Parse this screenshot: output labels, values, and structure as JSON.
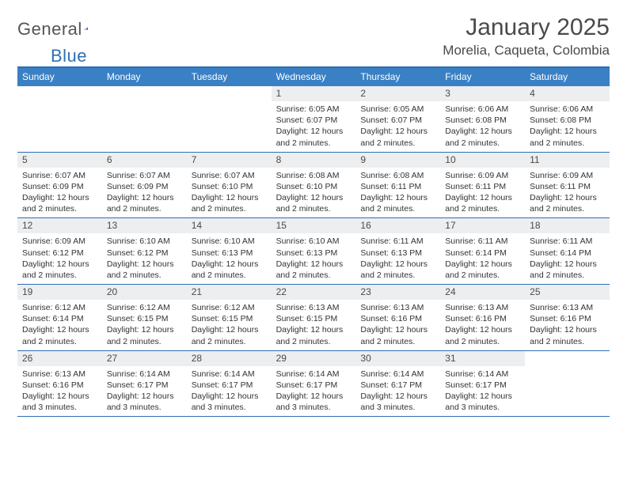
{
  "logo": {
    "general": "General",
    "blue": "Blue"
  },
  "header": {
    "month_title": "January 2025",
    "location": "Morelia, Caqueta, Colombia"
  },
  "colors": {
    "header_bar": "#3a80c4",
    "rule": "#2f6fb3",
    "daynum_bg": "#eceef0",
    "page_bg": "#ffffff",
    "text": "#333333",
    "title_text": "#4a4a4a"
  },
  "calendar": {
    "dow": [
      "Sunday",
      "Monday",
      "Tuesday",
      "Wednesday",
      "Thursday",
      "Friday",
      "Saturday"
    ],
    "fonts": {
      "dow_size": 12,
      "daynum_size": 12,
      "body_size": 10.5,
      "title_size": 30,
      "location_size": 17
    },
    "daylight_common": "Daylight: 12 hours and 2 minutes.",
    "daylight_3min": "Daylight: 12 hours and 3 minutes.",
    "weeks": [
      [
        null,
        null,
        null,
        {
          "n": "1",
          "sunrise": "Sunrise: 6:05 AM",
          "sunset": "Sunset: 6:07 PM",
          "day": "Daylight: 12 hours and 2 minutes."
        },
        {
          "n": "2",
          "sunrise": "Sunrise: 6:05 AM",
          "sunset": "Sunset: 6:07 PM",
          "day": "Daylight: 12 hours and 2 minutes."
        },
        {
          "n": "3",
          "sunrise": "Sunrise: 6:06 AM",
          "sunset": "Sunset: 6:08 PM",
          "day": "Daylight: 12 hours and 2 minutes."
        },
        {
          "n": "4",
          "sunrise": "Sunrise: 6:06 AM",
          "sunset": "Sunset: 6:08 PM",
          "day": "Daylight: 12 hours and 2 minutes."
        }
      ],
      [
        {
          "n": "5",
          "sunrise": "Sunrise: 6:07 AM",
          "sunset": "Sunset: 6:09 PM",
          "day": "Daylight: 12 hours and 2 minutes."
        },
        {
          "n": "6",
          "sunrise": "Sunrise: 6:07 AM",
          "sunset": "Sunset: 6:09 PM",
          "day": "Daylight: 12 hours and 2 minutes."
        },
        {
          "n": "7",
          "sunrise": "Sunrise: 6:07 AM",
          "sunset": "Sunset: 6:10 PM",
          "day": "Daylight: 12 hours and 2 minutes."
        },
        {
          "n": "8",
          "sunrise": "Sunrise: 6:08 AM",
          "sunset": "Sunset: 6:10 PM",
          "day": "Daylight: 12 hours and 2 minutes."
        },
        {
          "n": "9",
          "sunrise": "Sunrise: 6:08 AM",
          "sunset": "Sunset: 6:11 PM",
          "day": "Daylight: 12 hours and 2 minutes."
        },
        {
          "n": "10",
          "sunrise": "Sunrise: 6:09 AM",
          "sunset": "Sunset: 6:11 PM",
          "day": "Daylight: 12 hours and 2 minutes."
        },
        {
          "n": "11",
          "sunrise": "Sunrise: 6:09 AM",
          "sunset": "Sunset: 6:11 PM",
          "day": "Daylight: 12 hours and 2 minutes."
        }
      ],
      [
        {
          "n": "12",
          "sunrise": "Sunrise: 6:09 AM",
          "sunset": "Sunset: 6:12 PM",
          "day": "Daylight: 12 hours and 2 minutes."
        },
        {
          "n": "13",
          "sunrise": "Sunrise: 6:10 AM",
          "sunset": "Sunset: 6:12 PM",
          "day": "Daylight: 12 hours and 2 minutes."
        },
        {
          "n": "14",
          "sunrise": "Sunrise: 6:10 AM",
          "sunset": "Sunset: 6:13 PM",
          "day": "Daylight: 12 hours and 2 minutes."
        },
        {
          "n": "15",
          "sunrise": "Sunrise: 6:10 AM",
          "sunset": "Sunset: 6:13 PM",
          "day": "Daylight: 12 hours and 2 minutes."
        },
        {
          "n": "16",
          "sunrise": "Sunrise: 6:11 AM",
          "sunset": "Sunset: 6:13 PM",
          "day": "Daylight: 12 hours and 2 minutes."
        },
        {
          "n": "17",
          "sunrise": "Sunrise: 6:11 AM",
          "sunset": "Sunset: 6:14 PM",
          "day": "Daylight: 12 hours and 2 minutes."
        },
        {
          "n": "18",
          "sunrise": "Sunrise: 6:11 AM",
          "sunset": "Sunset: 6:14 PM",
          "day": "Daylight: 12 hours and 2 minutes."
        }
      ],
      [
        {
          "n": "19",
          "sunrise": "Sunrise: 6:12 AM",
          "sunset": "Sunset: 6:14 PM",
          "day": "Daylight: 12 hours and 2 minutes."
        },
        {
          "n": "20",
          "sunrise": "Sunrise: 6:12 AM",
          "sunset": "Sunset: 6:15 PM",
          "day": "Daylight: 12 hours and 2 minutes."
        },
        {
          "n": "21",
          "sunrise": "Sunrise: 6:12 AM",
          "sunset": "Sunset: 6:15 PM",
          "day": "Daylight: 12 hours and 2 minutes."
        },
        {
          "n": "22",
          "sunrise": "Sunrise: 6:13 AM",
          "sunset": "Sunset: 6:15 PM",
          "day": "Daylight: 12 hours and 2 minutes."
        },
        {
          "n": "23",
          "sunrise": "Sunrise: 6:13 AM",
          "sunset": "Sunset: 6:16 PM",
          "day": "Daylight: 12 hours and 2 minutes."
        },
        {
          "n": "24",
          "sunrise": "Sunrise: 6:13 AM",
          "sunset": "Sunset: 6:16 PM",
          "day": "Daylight: 12 hours and 2 minutes."
        },
        {
          "n": "25",
          "sunrise": "Sunrise: 6:13 AM",
          "sunset": "Sunset: 6:16 PM",
          "day": "Daylight: 12 hours and 2 minutes."
        }
      ],
      [
        {
          "n": "26",
          "sunrise": "Sunrise: 6:13 AM",
          "sunset": "Sunset: 6:16 PM",
          "day": "Daylight: 12 hours and 3 minutes."
        },
        {
          "n": "27",
          "sunrise": "Sunrise: 6:14 AM",
          "sunset": "Sunset: 6:17 PM",
          "day": "Daylight: 12 hours and 3 minutes."
        },
        {
          "n": "28",
          "sunrise": "Sunrise: 6:14 AM",
          "sunset": "Sunset: 6:17 PM",
          "day": "Daylight: 12 hours and 3 minutes."
        },
        {
          "n": "29",
          "sunrise": "Sunrise: 6:14 AM",
          "sunset": "Sunset: 6:17 PM",
          "day": "Daylight: 12 hours and 3 minutes."
        },
        {
          "n": "30",
          "sunrise": "Sunrise: 6:14 AM",
          "sunset": "Sunset: 6:17 PM",
          "day": "Daylight: 12 hours and 3 minutes."
        },
        {
          "n": "31",
          "sunrise": "Sunrise: 6:14 AM",
          "sunset": "Sunset: 6:17 PM",
          "day": "Daylight: 12 hours and 3 minutes."
        },
        null
      ]
    ]
  }
}
